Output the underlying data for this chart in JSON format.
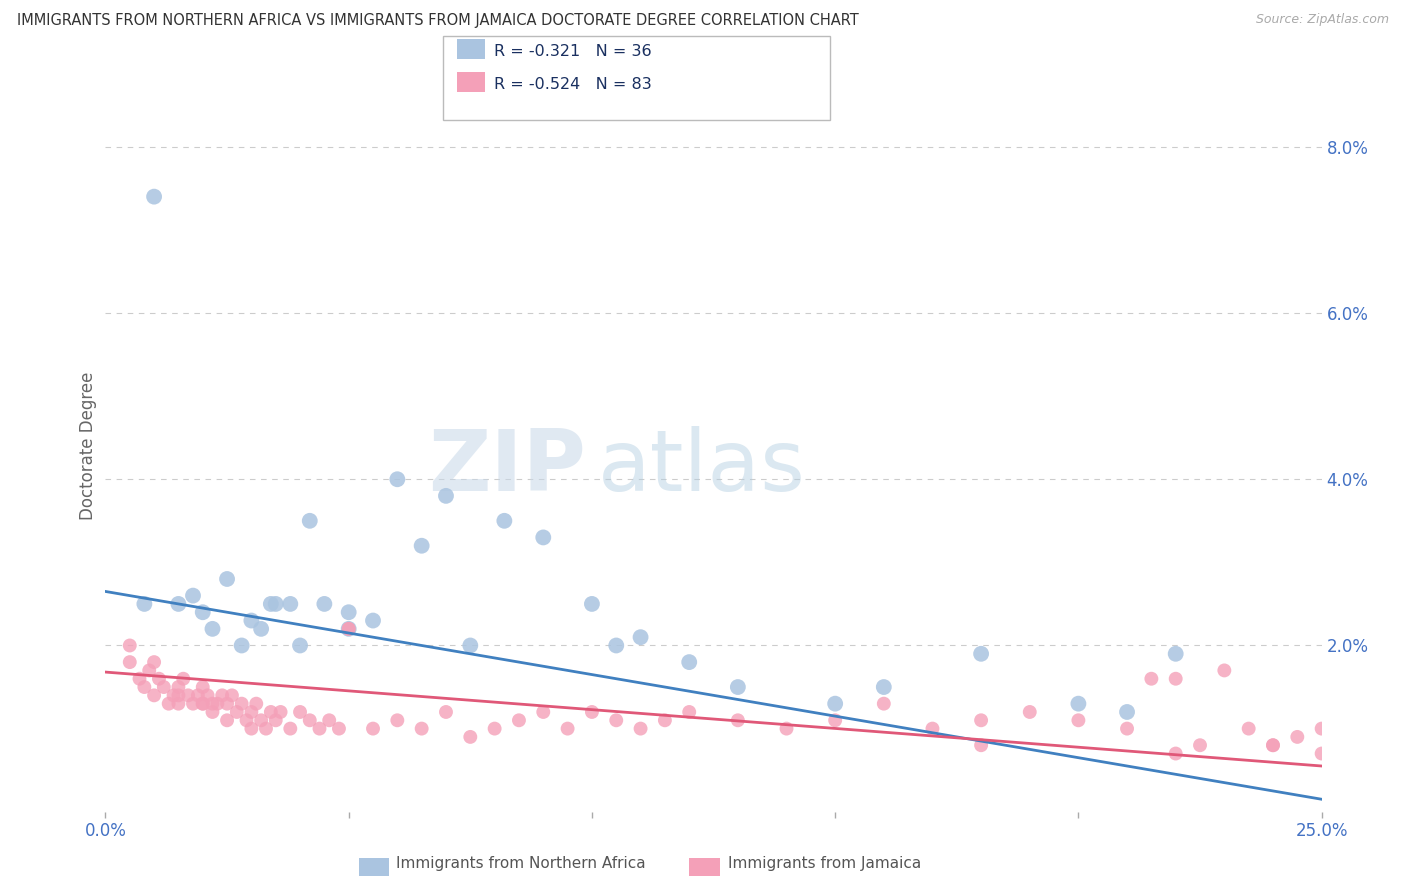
{
  "title": "IMMIGRANTS FROM NORTHERN AFRICA VS IMMIGRANTS FROM JAMAICA DOCTORATE DEGREE CORRELATION CHART",
  "source": "Source: ZipAtlas.com",
  "ylabel": "Doctorate Degree",
  "xlim": [
    0.0,
    0.25
  ],
  "ylim": [
    0.0,
    0.088
  ],
  "series1_color": "#aac4e0",
  "series2_color": "#f4a0b8",
  "line1_color": "#4080c0",
  "line2_color": "#e05878",
  "legend_label1": "Immigrants from Northern Africa",
  "legend_label2": "Immigrants from Jamaica",
  "R1": "-0.321",
  "N1": "36",
  "R2": "-0.524",
  "N2": "83",
  "watermark_zip": "ZIP",
  "watermark_atlas": "atlas",
  "background_color": "#ffffff",
  "grid_color": "#cccccc",
  "title_color": "#333333",
  "axis_label_color": "#4472c4",
  "blue_scatter_x": [
    0.01,
    0.018,
    0.022,
    0.025,
    0.028,
    0.03,
    0.032,
    0.034,
    0.038,
    0.04,
    0.042,
    0.045,
    0.05,
    0.055,
    0.06,
    0.065,
    0.07,
    0.075,
    0.082,
    0.09,
    0.1,
    0.105,
    0.11,
    0.12,
    0.13,
    0.15,
    0.16,
    0.18,
    0.2,
    0.21,
    0.22,
    0.008,
    0.015,
    0.02,
    0.035,
    0.05
  ],
  "blue_scatter_y": [
    0.074,
    0.026,
    0.022,
    0.028,
    0.02,
    0.023,
    0.022,
    0.025,
    0.025,
    0.02,
    0.035,
    0.025,
    0.022,
    0.023,
    0.04,
    0.032,
    0.038,
    0.02,
    0.035,
    0.033,
    0.025,
    0.02,
    0.021,
    0.018,
    0.015,
    0.013,
    0.015,
    0.019,
    0.013,
    0.012,
    0.019,
    0.025,
    0.025,
    0.024,
    0.025,
    0.024
  ],
  "pink_scatter_x": [
    0.005,
    0.007,
    0.008,
    0.009,
    0.01,
    0.011,
    0.012,
    0.013,
    0.014,
    0.015,
    0.015,
    0.016,
    0.017,
    0.018,
    0.019,
    0.02,
    0.02,
    0.021,
    0.022,
    0.022,
    0.023,
    0.024,
    0.025,
    0.026,
    0.027,
    0.028,
    0.029,
    0.03,
    0.031,
    0.032,
    0.033,
    0.034,
    0.035,
    0.036,
    0.038,
    0.04,
    0.042,
    0.044,
    0.046,
    0.048,
    0.05,
    0.055,
    0.06,
    0.065,
    0.07,
    0.075,
    0.08,
    0.085,
    0.09,
    0.095,
    0.1,
    0.105,
    0.11,
    0.115,
    0.12,
    0.13,
    0.14,
    0.15,
    0.16,
    0.17,
    0.18,
    0.19,
    0.2,
    0.21,
    0.215,
    0.22,
    0.225,
    0.23,
    0.235,
    0.24,
    0.245,
    0.25,
    0.01,
    0.015,
    0.02,
    0.025,
    0.03,
    0.005,
    0.05,
    0.18,
    0.22,
    0.24,
    0.25
  ],
  "pink_scatter_y": [
    0.018,
    0.016,
    0.015,
    0.017,
    0.014,
    0.016,
    0.015,
    0.013,
    0.014,
    0.015,
    0.013,
    0.016,
    0.014,
    0.013,
    0.014,
    0.015,
    0.013,
    0.014,
    0.013,
    0.012,
    0.013,
    0.014,
    0.013,
    0.014,
    0.012,
    0.013,
    0.011,
    0.012,
    0.013,
    0.011,
    0.01,
    0.012,
    0.011,
    0.012,
    0.01,
    0.012,
    0.011,
    0.01,
    0.011,
    0.01,
    0.022,
    0.01,
    0.011,
    0.01,
    0.012,
    0.009,
    0.01,
    0.011,
    0.012,
    0.01,
    0.012,
    0.011,
    0.01,
    0.011,
    0.012,
    0.011,
    0.01,
    0.011,
    0.013,
    0.01,
    0.011,
    0.012,
    0.011,
    0.01,
    0.016,
    0.016,
    0.008,
    0.017,
    0.01,
    0.008,
    0.009,
    0.01,
    0.018,
    0.014,
    0.013,
    0.011,
    0.01,
    0.02,
    0.022,
    0.008,
    0.007,
    0.008,
    0.007
  ],
  "line1_x": [
    0.0,
    0.25
  ],
  "line1_y": [
    0.0265,
    0.0015
  ],
  "line2_x": [
    0.0,
    0.25
  ],
  "line2_y": [
    0.0168,
    0.0055
  ]
}
